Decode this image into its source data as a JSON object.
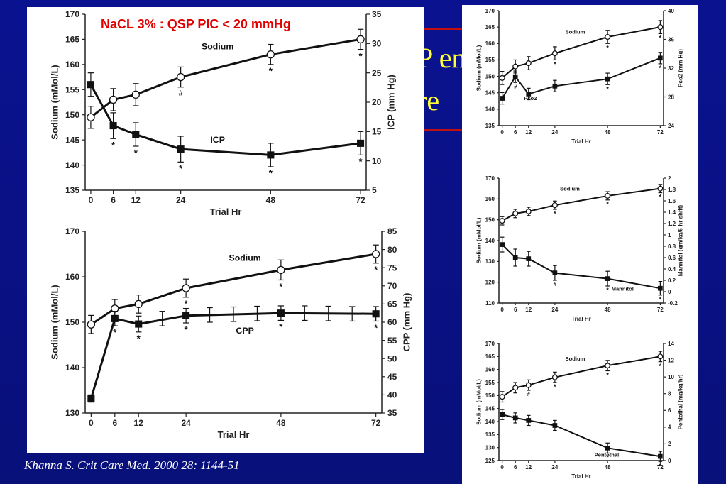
{
  "slide": {
    "title_fragment_1": "P en",
    "title_fragment_2": "re",
    "citation": "Khanna S. Crit Care Med. 2000 28: 1144-51"
  },
  "chart_data": [
    {
      "id": "chart1",
      "type": "line",
      "annotation": "NaCL 3% : QSP PIC < 20 mmHg",
      "xlabel": "Trial Hr",
      "ylabel": "Sodium (mMol/L)",
      "y2label": "ICP (mm Hg)",
      "x": [
        0,
        6,
        12,
        24,
        48,
        72
      ],
      "x_ticks": [
        "0",
        "6",
        "12",
        "24",
        "48",
        "72"
      ],
      "ylim": [
        135,
        170
      ],
      "y_ticks": [
        "135",
        "140",
        "145",
        "150",
        "155",
        "160",
        "165",
        "170"
      ],
      "y2lim": [
        5,
        35
      ],
      "y2_ticks": [
        "5",
        "10",
        "15",
        "20",
        "25",
        "30",
        "35"
      ],
      "series": [
        {
          "name": "Sodium",
          "axis": "left",
          "marker": "open",
          "values": [
            149.5,
            153,
            154,
            157.5,
            162,
            165
          ],
          "err": [
            2.2,
            2.2,
            2.2,
            2,
            2,
            2
          ],
          "stars": [
            false,
            false,
            false,
            false,
            true,
            true
          ],
          "hash": [
            false,
            false,
            false,
            true,
            false,
            false
          ]
        },
        {
          "name": "ICP",
          "axis": "right",
          "marker": "filled",
          "values": [
            23,
            16,
            14.5,
            12,
            11,
            13
          ],
          "err": [
            2,
            2.2,
            2,
            2.2,
            2,
            2
          ],
          "stars": [
            false,
            true,
            true,
            true,
            true,
            true
          ],
          "hash": [
            false,
            false,
            false,
            false,
            false,
            false
          ]
        }
      ]
    },
    {
      "id": "chart2",
      "type": "line",
      "xlabel": "Trial Hr",
      "ylabel": "Sodium (mMol/L)",
      "y2label": "CPP (mm Hg)",
      "x": [
        0,
        6,
        12,
        24,
        48,
        72
      ],
      "x_ticks": [
        "0",
        "6",
        "12",
        "24",
        "48",
        "72"
      ],
      "ylim": [
        130,
        170
      ],
      "y_ticks": [
        "130",
        "140",
        "150",
        "160",
        "170"
      ],
      "y2lim": [
        35,
        85
      ],
      "y2_ticks": [
        "35",
        "40",
        "45",
        "50",
        "55",
        "60",
        "65",
        "70",
        "75",
        "80",
        "85"
      ],
      "series": [
        {
          "name": "Sodium",
          "axis": "left",
          "marker": "open",
          "values": [
            149.5,
            153,
            154,
            157.5,
            161.5,
            165
          ],
          "err": [
            2,
            2,
            2,
            2,
            2.2,
            2
          ],
          "stars": [
            false,
            false,
            false,
            true,
            true,
            true
          ],
          "hash": [
            false,
            false,
            false,
            false,
            false,
            false
          ]
        },
        {
          "name": "CPP",
          "axis": "right",
          "marker": "filled",
          "values": [
            39,
            61,
            59.5,
            61.8,
            62.5,
            62.3
          ],
          "err": [
            1,
            2,
            2.2,
            2,
            2,
            2
          ],
          "stars": [
            false,
            true,
            true,
            true,
            true,
            true
          ],
          "hash": [
            false,
            false,
            false,
            false,
            false,
            false
          ]
        },
        {
          "name": "",
          "axis": "right",
          "marker": "none",
          "line": false,
          "x": [
            18,
            30,
            36,
            42,
            54,
            60,
            66
          ],
          "values": [
            61,
            62,
            62.2,
            62.4,
            62.5,
            62.4,
            62.3
          ],
          "err": [
            2,
            2,
            2,
            2,
            2,
            2,
            2
          ]
        }
      ]
    },
    {
      "id": "chart3",
      "type": "line",
      "xlabel": "Trial Hr",
      "ylabel": "Sodium (mMol/L)",
      "y2label": "Pco2 (mm Hg)",
      "x": [
        0,
        6,
        12,
        24,
        48,
        72
      ],
      "x_ticks": [
        "0",
        "6",
        "12",
        "24",
        "48",
        "72"
      ],
      "ylim": [
        135,
        170
      ],
      "y_ticks": [
        "135",
        "140",
        "145",
        "150",
        "155",
        "160",
        "165",
        "170"
      ],
      "y2lim": [
        24,
        40
      ],
      "y2_ticks": [
        "24",
        "28",
        "32",
        "36",
        "40"
      ],
      "series": [
        {
          "name": "Sodium",
          "axis": "left",
          "marker": "open",
          "values": [
            149.5,
            153,
            154,
            157,
            162,
            165
          ],
          "err": [
            2,
            2,
            2,
            2,
            2,
            2
          ],
          "stars": [
            false,
            false,
            false,
            true,
            true,
            true
          ],
          "hash": [
            false,
            false,
            false,
            false,
            false,
            false
          ]
        },
        {
          "name": "Pco2",
          "axis": "right",
          "marker": "filled",
          "values": [
            27.8,
            30.8,
            28.4,
            29.5,
            30.5,
            33.4
          ],
          "err": [
            0.8,
            0.8,
            0.8,
            0.8,
            0.8,
            0.8
          ],
          "stars": [
            false,
            false,
            false,
            false,
            true,
            true
          ],
          "hash": [
            false,
            true,
            false,
            false,
            false,
            false
          ]
        }
      ]
    },
    {
      "id": "chart4",
      "type": "line",
      "xlabel": "Trial Hr",
      "ylabel": "Sodium (mMol/L)",
      "y2label": "Mannitol (gm/kg/6-hr shift)",
      "x": [
        0,
        6,
        12,
        24,
        48,
        72
      ],
      "x_ticks": [
        "0",
        "6",
        "12",
        "24",
        "48",
        "72"
      ],
      "ylim": [
        110,
        170
      ],
      "y_ticks": [
        "110",
        "120",
        "130",
        "140",
        "150",
        "160",
        "170"
      ],
      "y2lim": [
        -0.2,
        2
      ],
      "y2_ticks": [
        "-0.2",
        "0",
        "0.2",
        "0.4",
        "0.6",
        "0.8",
        "1",
        "1.2",
        "1.4",
        "1.6",
        "1.8",
        "2"
      ],
      "series": [
        {
          "name": "Sodium",
          "axis": "left",
          "marker": "open",
          "values": [
            149.5,
            153,
            154,
            157,
            161.5,
            165
          ],
          "err": [
            2,
            2,
            2,
            2,
            2,
            2
          ],
          "stars": [
            false,
            false,
            false,
            true,
            true,
            true
          ],
          "hash": [
            false,
            false,
            false,
            false,
            false,
            false
          ]
        },
        {
          "name": "Mannitol",
          "axis": "right",
          "marker": "filled",
          "values": [
            0.83,
            0.6,
            0.58,
            0.33,
            0.23,
            0.06
          ],
          "err": [
            0.13,
            0.15,
            0.13,
            0.13,
            0.13,
            0.12
          ],
          "stars": [
            false,
            false,
            false,
            false,
            true,
            true
          ],
          "hash": [
            false,
            false,
            false,
            true,
            false,
            false
          ]
        }
      ]
    },
    {
      "id": "chart5",
      "type": "line",
      "xlabel": "Trial Hr",
      "ylabel": "Sodium (mMol/L)",
      "y2label": "Pentothal (mg/kg/hr)",
      "x": [
        0,
        6,
        12,
        24,
        48,
        72
      ],
      "x_ticks": [
        "0",
        "6",
        "12",
        "24",
        "48",
        "72"
      ],
      "ylim": [
        125,
        170
      ],
      "y_ticks": [
        "125",
        "130",
        "135",
        "140",
        "145",
        "150",
        "155",
        "160",
        "165",
        "170"
      ],
      "y2lim": [
        0,
        14
      ],
      "y2_ticks": [
        "0",
        "2",
        "4",
        "6",
        "8",
        "10",
        "12",
        "14"
      ],
      "series": [
        {
          "name": "Sodium",
          "axis": "left",
          "marker": "open",
          "values": [
            149.5,
            153,
            154,
            157,
            161.5,
            165
          ],
          "err": [
            2,
            2,
            2,
            2,
            2,
            2
          ],
          "stars": [
            false,
            false,
            false,
            true,
            true,
            true
          ],
          "hash": [
            false,
            false,
            true,
            false,
            false,
            false
          ]
        },
        {
          "name": "Pentothal",
          "axis": "right",
          "marker": "filled",
          "values": [
            5.5,
            5.1,
            4.8,
            4.2,
            1.5,
            0.5
          ],
          "err": [
            0.6,
            0.6,
            0.6,
            0.6,
            0.6,
            0.6
          ],
          "stars": [
            false,
            false,
            false,
            false,
            true,
            true
          ],
          "hash": [
            false,
            false,
            false,
            false,
            false,
            false
          ]
        }
      ]
    }
  ]
}
